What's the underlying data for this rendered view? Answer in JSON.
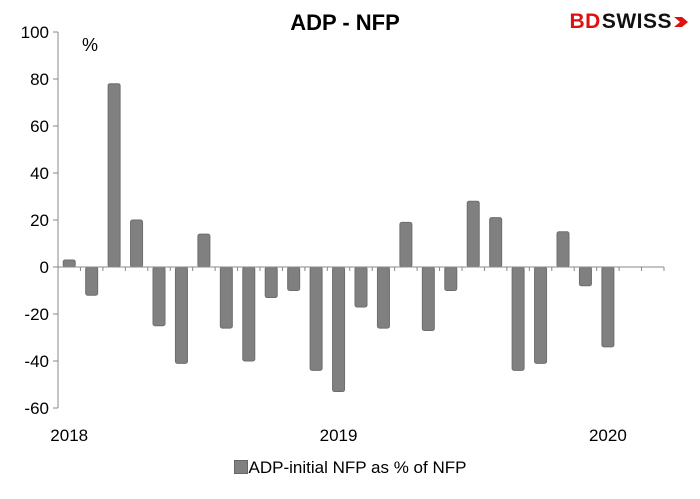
{
  "brand": {
    "part1": "BD",
    "part2": "SWISS"
  },
  "chart_data": {
    "type": "bar",
    "title": "ADP - NFP",
    "unit_label": "%",
    "series": [
      {
        "name": "ADP-initial NFP as % of NFP",
        "color": "#808080",
        "values": [
          3,
          -12,
          78,
          20,
          -25,
          -41,
          14,
          -26,
          -40,
          -13,
          -10,
          -44,
          -53,
          -17,
          -26,
          19,
          -27,
          -10,
          28,
          21,
          -44,
          -41,
          15,
          -8,
          -34
        ]
      }
    ],
    "ylim": [
      -60,
      100
    ],
    "yticks": [
      -60,
      -40,
      -20,
      0,
      20,
      40,
      60,
      80,
      100
    ],
    "xtick_labels": [
      {
        "label": "2018",
        "index": 0
      },
      {
        "label": "2019",
        "index": 12
      },
      {
        "label": "2020",
        "index": 24
      }
    ],
    "xlabel": "",
    "ylabel": "",
    "grid": false,
    "legend_position": "bottom"
  }
}
